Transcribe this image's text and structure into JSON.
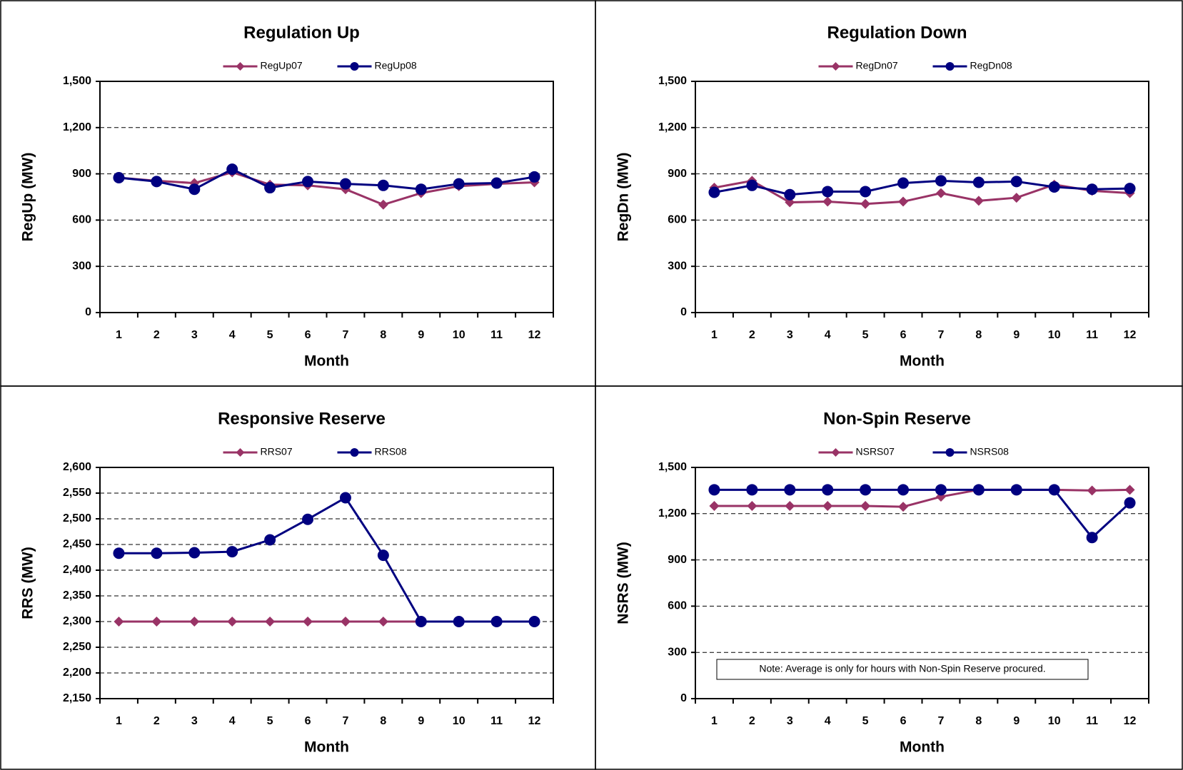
{
  "chart_data": [
    {
      "type": "line",
      "title": "Regulation Up",
      "x_label": "Month",
      "y_label": "RegUp (MW)",
      "categories": [
        "1",
        "2",
        "3",
        "4",
        "5",
        "6",
        "7",
        "8",
        "9",
        "10",
        "11",
        "12"
      ],
      "ylim": [
        0,
        1500
      ],
      "yticks": [
        0,
        300,
        600,
        900,
        {
          "value": 1200,
          "label": "1,200"
        },
        {
          "value": 1500,
          "label": "1,500"
        }
      ],
      "grid": true,
      "series": [
        {
          "name": "RegUp07",
          "color": "#993366",
          "marker": "diamond",
          "values": [
            875,
            855,
            840,
            910,
            830,
            825,
            800,
            700,
            775,
            820,
            835,
            845
          ]
        },
        {
          "name": "RegUp08",
          "color": "#000080",
          "marker": "circle",
          "values": [
            875,
            850,
            800,
            930,
            810,
            850,
            835,
            825,
            800,
            835,
            840,
            880
          ]
        }
      ]
    },
    {
      "type": "line",
      "title": "Regulation Down",
      "x_label": "Month",
      "y_label": "RegDn (MW)",
      "categories": [
        "1",
        "2",
        "3",
        "4",
        "5",
        "6",
        "7",
        "8",
        "9",
        "10",
        "11",
        "12"
      ],
      "ylim": [
        0,
        1500
      ],
      "yticks": [
        0,
        300,
        600,
        900,
        {
          "value": 1200,
          "label": "1,200"
        },
        {
          "value": 1500,
          "label": "1,500"
        }
      ],
      "grid": true,
      "series": [
        {
          "name": "RegDn07",
          "color": "#993366",
          "marker": "diamond",
          "values": [
            810,
            855,
            715,
            720,
            705,
            720,
            775,
            725,
            745,
            830,
            790,
            775
          ]
        },
        {
          "name": "RegDn08",
          "color": "#000080",
          "marker": "circle",
          "values": [
            780,
            825,
            765,
            785,
            785,
            840,
            855,
            845,
            850,
            815,
            800,
            805
          ]
        }
      ]
    },
    {
      "type": "line",
      "title": "Responsive Reserve",
      "x_label": "Month",
      "y_label": "RRS (MW)",
      "categories": [
        "1",
        "2",
        "3",
        "4",
        "5",
        "6",
        "7",
        "8",
        "9",
        "10",
        "11",
        "12"
      ],
      "ylim": [
        2150,
        2600
      ],
      "yticks": [
        {
          "value": 2150,
          "label": "2,150"
        },
        {
          "value": 2200,
          "label": "2,200"
        },
        {
          "value": 2250,
          "label": "2,250"
        },
        {
          "value": 2300,
          "label": "2,300"
        },
        {
          "value": 2350,
          "label": "2,350"
        },
        {
          "value": 2400,
          "label": "2,400"
        },
        {
          "value": 2450,
          "label": "2,450"
        },
        {
          "value": 2500,
          "label": "2,500"
        },
        {
          "value": 2550,
          "label": "2,550"
        },
        {
          "value": 2600,
          "label": "2,600"
        }
      ],
      "grid": true,
      "series": [
        {
          "name": "RRS07",
          "color": "#993366",
          "marker": "diamond",
          "values": [
            2300,
            2300,
            2300,
            2300,
            2300,
            2300,
            2300,
            2300,
            2300,
            2300,
            2300,
            2300
          ]
        },
        {
          "name": "RRS08",
          "color": "#000080",
          "marker": "circle",
          "values": [
            2433,
            2433,
            2434,
            2436,
            2459,
            2499,
            2541,
            2429,
            2300,
            2300,
            2300,
            2300
          ]
        }
      ]
    },
    {
      "type": "line",
      "title": "Non-Spin Reserve",
      "x_label": "Month",
      "y_label": "NSRS (MW)",
      "categories": [
        "1",
        "2",
        "3",
        "4",
        "5",
        "6",
        "7",
        "8",
        "9",
        "10",
        "11",
        "12"
      ],
      "ylim": [
        0,
        1500
      ],
      "yticks": [
        0,
        300,
        600,
        900,
        {
          "value": 1200,
          "label": "1,200"
        },
        {
          "value": 1500,
          "label": "1,500"
        }
      ],
      "grid": true,
      "annotation": "Note: Average is only for hours with Non-Spin Reserve procured.",
      "series": [
        {
          "name": "NSRS07",
          "color": "#993366",
          "marker": "diamond",
          "values": [
            1250,
            1250,
            1250,
            1250,
            1250,
            1245,
            1310,
            1355,
            1355,
            1355,
            1350,
            1355
          ]
        },
        {
          "name": "NSRS08",
          "color": "#000080",
          "marker": "circle",
          "values": [
            1355,
            1355,
            1355,
            1355,
            1355,
            1355,
            1355,
            1355,
            1355,
            1355,
            1045,
            1270
          ]
        }
      ]
    }
  ]
}
